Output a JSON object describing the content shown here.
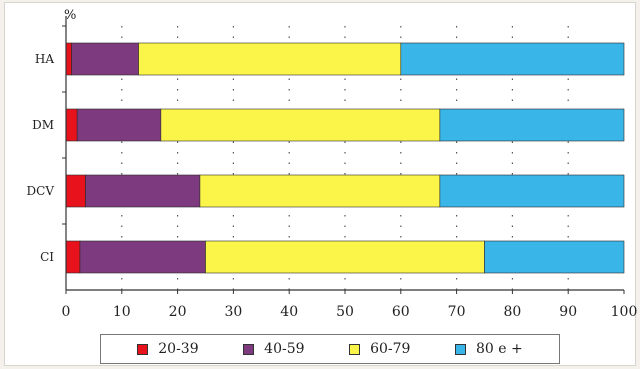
{
  "chart_data": {
    "type": "bar",
    "orientation": "horizontal",
    "stacked": true,
    "ylabel": "%",
    "xlim": [
      0,
      100
    ],
    "x_ticks": [
      "0",
      "10",
      "20",
      "30",
      "40",
      "50",
      "60",
      "70",
      "80",
      "90",
      "100"
    ],
    "grid": true,
    "legend_position": "bottom",
    "categories": [
      "HA",
      "DM",
      "DCV",
      "CI"
    ],
    "series": [
      {
        "name": "20-39",
        "color": "#e8121c",
        "values": [
          1,
          2,
          3.5,
          2.5
        ]
      },
      {
        "name": "40-59",
        "color": "#7d3a7e",
        "values": [
          12,
          15,
          20.5,
          22.5
        ]
      },
      {
        "name": "60-79",
        "color": "#fbf54a",
        "values": [
          47,
          50,
          43,
          50
        ]
      },
      {
        "name": "80 e +",
        "color": "#3ab5e8",
        "values": [
          40,
          33,
          33,
          25
        ]
      }
    ]
  }
}
